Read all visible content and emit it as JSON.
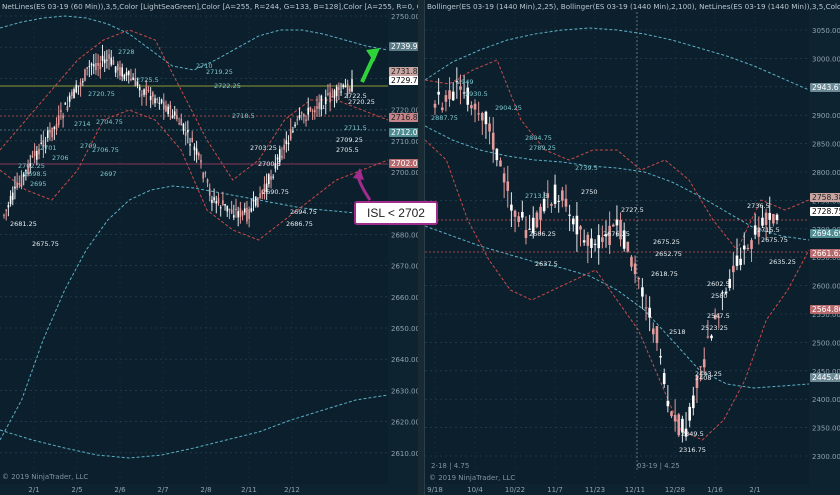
{
  "left_panel": {
    "header": "NetLines(ES 03-19 (60 Min)),3,5,Color [LightSeaGreen],Color [A=255, R=244, G=133, B=128],Color [A=255, R=0, G=131",
    "copyright": "© 2019 NinjaTrader, LLC",
    "y_ticks": [
      "2750.00",
      "2740.00",
      "2730.00",
      "2720.00",
      "2710.00",
      "2700.00",
      "2690.00",
      "2680.00",
      "2670.00",
      "2660.00",
      "2650.00",
      "2640.00",
      "2630.00",
      "2620.00",
      "2610.00"
    ],
    "x_ticks": [
      "2/1",
      "2/5",
      "2/6",
      "2/7",
      "2/8",
      "2/11",
      "2/12"
    ],
    "price_boxes": [
      {
        "label": "2739.99",
        "bg": "#5a7a86",
        "fg": "#ffffff"
      },
      {
        "label": "2731.88",
        "bg": "#c9a5a2",
        "fg": "#222222"
      },
      {
        "label": "2729.75",
        "bg": "#ffffff",
        "fg": "#000000"
      },
      {
        "label": "2716.84",
        "bg": "#c5838a",
        "fg": "#222222"
      },
      {
        "label": "2712.00",
        "bg": "#4f8d92",
        "fg": "#ffffff"
      },
      {
        "label": "2702.00",
        "bg": "#b86b6f",
        "fg": "#ffffff"
      }
    ],
    "annotations": [
      "2728",
      "2725.5",
      "2720.75",
      "2714",
      "2709",
      "2706.75",
      "2701",
      "2706",
      "2702.25",
      "2698.5",
      "2697",
      "2695",
      "2704.75",
      "2710",
      "2719.25",
      "2722.25",
      "2718.5",
      "2711.5",
      "2709.25",
      "2705.5",
      "2703.25",
      "2700.5",
      "2690.75",
      "2694.75",
      "2686.75",
      "2681.25",
      "2675.75",
      "2722.5",
      "2720.25"
    ],
    "callout": "ISL < 2702"
  },
  "right_panel": {
    "header": "Bollinger(ES 03-19 (1440 Min),2,25), Bollinger(ES 03-19 (1440 Min),2,100), NetLines(ES 03-19 (1440 Min)),3,5,Color",
    "copyright": "© 2019 NinjaTrader, LLC",
    "bottom_left": "2-18 | 4.75",
    "bottom_mid": "03-19 | 4.25",
    "y_ticks": [
      "3050.00",
      "3000.00",
      "2950.00",
      "2900.00",
      "2850.00",
      "2800.00",
      "2750.00",
      "2700.00",
      "2650.00",
      "2600.00",
      "2550.00",
      "2500.00",
      "2450.00",
      "2400.00",
      "2350.00",
      "2300.00"
    ],
    "x_ticks": [
      "9/18",
      "10/4",
      "10/22",
      "11/7",
      "11/23",
      "12/11",
      "12/28",
      "1/16",
      "2/1"
    ],
    "price_boxes": [
      {
        "label": "2943.67",
        "bg": "#6c8a96",
        "fg": "#ffffff"
      },
      {
        "label": "2758.38",
        "bg": "#c9a5a2",
        "fg": "#222222"
      },
      {
        "label": "2728.75",
        "bg": "#ffffff",
        "fg": "#000000"
      },
      {
        "label": "2694.69",
        "bg": "#4f8d92",
        "fg": "#ffffff"
      },
      {
        "label": "2661.62",
        "bg": "#b86b6f",
        "fg": "#ffffff"
      },
      {
        "label": "2564.86",
        "bg": "#b86b6f",
        "fg": "#ffffff"
      },
      {
        "label": "2445.40",
        "bg": "#6c8a96",
        "fg": "#ffffff"
      }
    ],
    "annotations": [
      "2949",
      "2930.5",
      "2904.25",
      "2887.75",
      "2804.75",
      "2789.25",
      "2739.5",
      "2713.5",
      "2750",
      "2727.5",
      "2686.25",
      "2676.25",
      "2637.5",
      "2675.25",
      "2652.75",
      "2618.75",
      "2602.5",
      "2580",
      "2547.5",
      "2523.25",
      "2518",
      "2443.25",
      "2408",
      "2349.5",
      "2316.75",
      "2736.5",
      "2715.5",
      "2675.75",
      "2635.25"
    ]
  },
  "colors": {
    "background": "#0c1f2c",
    "bull_candle": "#ffffff",
    "bear_candle": "#e49b9c",
    "band_red": "#c94a4a",
    "band_blue": "#5ab0c4",
    "grid": "#2a4a5a"
  }
}
